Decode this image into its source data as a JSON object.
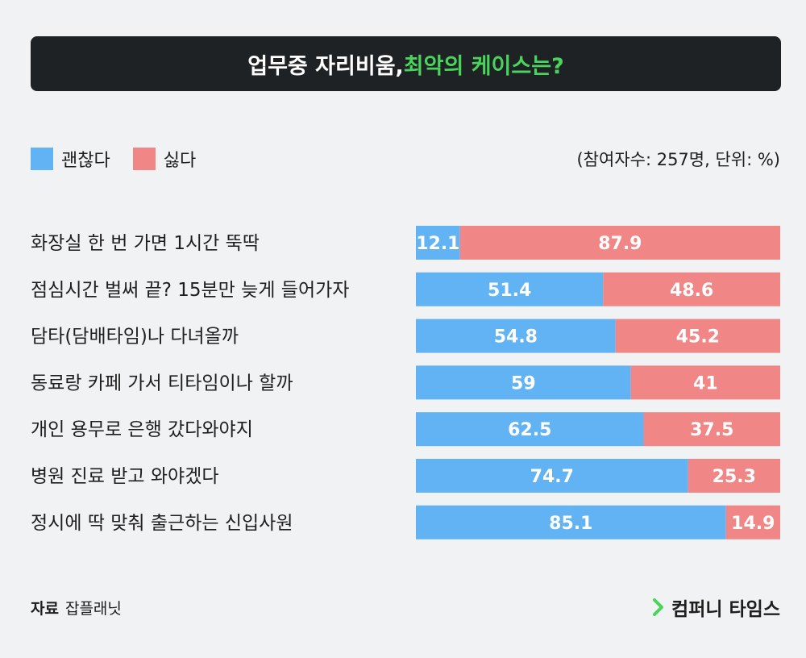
{
  "header": {
    "title_plain": "업무중 자리비움, ",
    "title_highlight": "최악의 케이스는?"
  },
  "legend": {
    "ok_label": "괜찮다",
    "dislike_label": "싫다"
  },
  "note": "(참여자수: 257명, 단위: %)",
  "footer": {
    "source_label": "자료",
    "source_value": "잡플래닛",
    "brand": "컴퍼니 타임스"
  },
  "colors": {
    "ok": "#62b3f4",
    "dislike": "#f08686",
    "highlight": "#49d45c"
  },
  "chart_data": {
    "type": "bar",
    "orientation": "horizontal",
    "stacked": true,
    "title": "업무중 자리비움, 최악의 케이스는?",
    "unit": "%",
    "xlim": [
      0,
      100
    ],
    "categories": [
      "화장실 한 번 가면 1시간 뚝딱",
      "점심시간 벌써 끝? 15분만 늦게 들어가자",
      "담타(담배타임)나 다녀올까",
      "동료랑 카페 가서 티타임이나 할까",
      "개인 용무로 은행 갔다와야지",
      "병원 진료 받고 와야겠다",
      "정시에 딱 맞춰 출근하는 신입사원"
    ],
    "series": [
      {
        "name": "괜찮다",
        "values": [
          12.1,
          51.4,
          54.8,
          59,
          62.5,
          74.7,
          85.1
        ]
      },
      {
        "name": "싫다",
        "values": [
          87.9,
          48.6,
          45.2,
          41,
          37.5,
          25.3,
          14.9
        ]
      }
    ]
  }
}
